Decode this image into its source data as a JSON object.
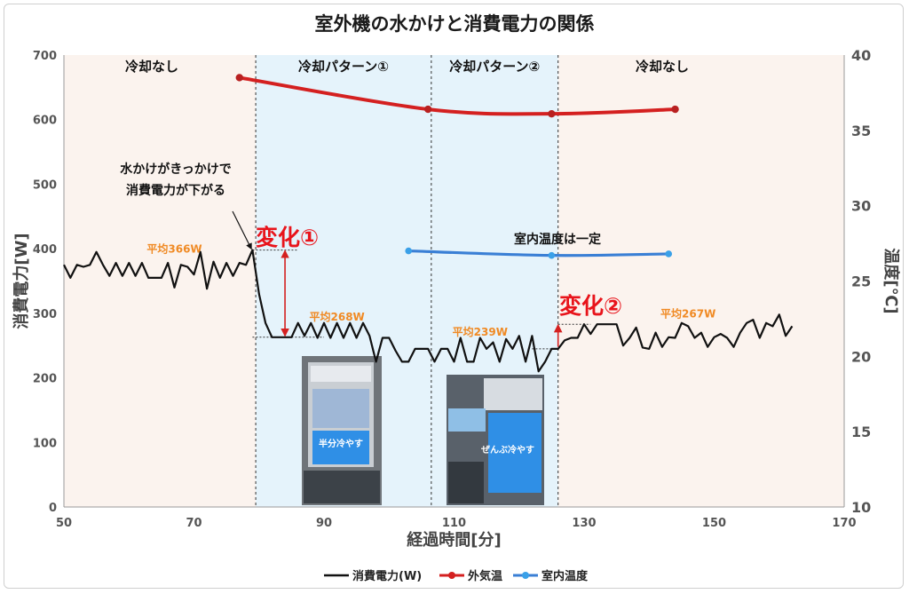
{
  "chart_data": {
    "type": "line",
    "title": "室外機の水かけと消費電力の関係",
    "xlabel": "経過時間[分]",
    "ylabel_left": "消費電力[W]",
    "ylabel_right": "温度[℃]",
    "xlim": [
      50,
      170
    ],
    "ylim_left": [
      0,
      700
    ],
    "ylim_right": [
      10,
      40
    ],
    "x_ticks": [
      50,
      70,
      90,
      110,
      130,
      150,
      170
    ],
    "y_left_ticks": [
      0,
      100,
      200,
      300,
      400,
      500,
      600,
      700
    ],
    "y_right_ticks": [
      10,
      15,
      20,
      25,
      30,
      35,
      40
    ],
    "grid": false,
    "legend_position": "bottom",
    "phases": [
      {
        "label": "冷却なし",
        "x_start": 50,
        "x_end": 79.5,
        "color": "#fbf3ee"
      },
      {
        "label": "冷却パターン①",
        "x_start": 79.5,
        "x_end": 106.5,
        "color": "#e5f3fb"
      },
      {
        "label": "冷却パターン②",
        "x_start": 106.5,
        "x_end": 126,
        "color": "#e5f3fb"
      },
      {
        "label": "冷却なし",
        "x_start": 126,
        "x_end": 170,
        "color": "#fbf3ee"
      }
    ],
    "series": [
      {
        "name": "消費電力(W)",
        "axis": "left",
        "color": "#111111",
        "marker": "none",
        "x": [
          50,
          51,
          52,
          53,
          54,
          55,
          56,
          57,
          58,
          59,
          60,
          61,
          62,
          63,
          64,
          65,
          66,
          67,
          68,
          69,
          70,
          71,
          72,
          73,
          74,
          75,
          76,
          77,
          78,
          79,
          80,
          81,
          82,
          83,
          84,
          85,
          86,
          87,
          88,
          89,
          90,
          91,
          92,
          93,
          94,
          95,
          96,
          97,
          98,
          99,
          100,
          101,
          102,
          103,
          104,
          105,
          106,
          107,
          108,
          109,
          110,
          111,
          112,
          113,
          114,
          115,
          116,
          117,
          118,
          119,
          120,
          121,
          122,
          123,
          124,
          125,
          126,
          127,
          128,
          129,
          130,
          131,
          132,
          133,
          134,
          135,
          136,
          137,
          138,
          139,
          140,
          141,
          142,
          143,
          144,
          145,
          146,
          147,
          148,
          149,
          150,
          151,
          152,
          153,
          154,
          155,
          156,
          157,
          158,
          159,
          160,
          161,
          162
        ],
        "values": [
          375,
          355,
          375,
          372,
          375,
          395,
          375,
          358,
          378,
          358,
          378,
          358,
          378,
          355,
          355,
          355,
          378,
          340,
          375,
          372,
          360,
          395,
          338,
          380,
          355,
          378,
          358,
          378,
          375,
          398,
          330,
          285,
          263,
          263,
          263,
          263,
          285,
          265,
          285,
          262,
          285,
          262,
          285,
          262,
          285,
          262,
          285,
          265,
          225,
          262,
          262,
          242,
          225,
          225,
          245,
          245,
          245,
          225,
          245,
          245,
          225,
          262,
          225,
          225,
          262,
          245,
          255,
          225,
          260,
          245,
          265,
          225,
          265,
          210,
          225,
          245,
          245,
          258,
          262,
          262,
          283,
          268,
          283,
          283,
          283,
          283,
          250,
          262,
          278,
          247,
          245,
          270,
          248,
          263,
          262,
          285,
          280,
          262,
          270,
          248,
          263,
          268,
          262,
          248,
          270,
          285,
          290,
          262,
          285,
          280,
          298,
          265,
          280
        ]
      },
      {
        "name": "外気温",
        "axis": "right",
        "color": "#d42020",
        "marker": "circle",
        "x": [
          77,
          106,
          125,
          144
        ],
        "values": [
          38.5,
          36.4,
          36.1,
          36.4
        ]
      },
      {
        "name": "室内温度",
        "axis": "right",
        "color": "#3a7fd5",
        "marker": "circle",
        "x": [
          103,
          125,
          143
        ],
        "values": [
          27.0,
          26.7,
          26.8
        ]
      }
    ],
    "averages": [
      {
        "label": "平均366W",
        "x": 67
      },
      {
        "label": "平均268W",
        "x": 92
      },
      {
        "label": "平均239W",
        "x": 114
      },
      {
        "label": "平均267W",
        "x": 146
      }
    ],
    "annotations": {
      "change1": "変化①",
      "change2": "変化②",
      "note_line1": "水かけがきっかけで",
      "note_line2": "消費電力が下がる",
      "indoor_note": "室内温度は一定",
      "photo1_caption": "半分冷やす",
      "photo2_caption": "ぜんぶ冷やす"
    }
  }
}
